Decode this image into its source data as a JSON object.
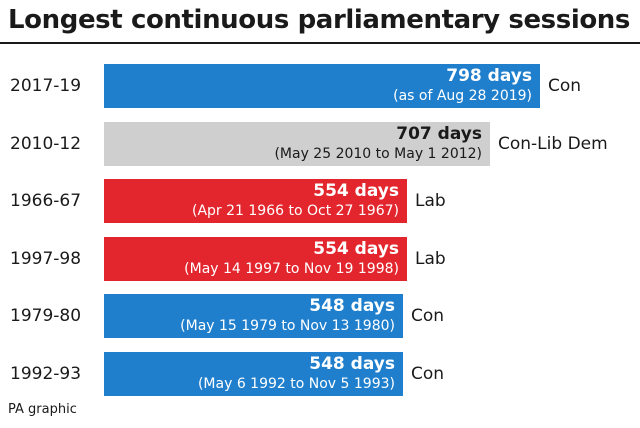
{
  "title": "Longest continuous parliamentary sessions",
  "source": "PA graphic",
  "colors": {
    "Con": "#1f7fcd",
    "Lab": "#e3262e",
    "Con-Lib Dem": "#cfcfcf",
    "text_on_dark": "#ffffff",
    "text_on_light": "#1a1a1a"
  },
  "chart_data": {
    "type": "bar",
    "orientation": "horizontal",
    "categories": [
      "2017-19",
      "2010-12",
      "1966-67",
      "1997-98",
      "1979-80",
      "1992-93"
    ],
    "values": [
      798,
      707,
      554,
      554,
      548,
      548
    ],
    "unit": "days",
    "value_labels": [
      "798 days",
      "707 days",
      "554 days",
      "554 days",
      "548 days",
      "548 days"
    ],
    "date_labels": [
      "(as of Aug 28 2019)",
      "(May 25 2010 to May 1 2012)",
      "(Apr 21 1966 to Oct 27 1967)",
      "(May 14 1997 to Nov 19 1998)",
      "(May 15 1979 to Nov 13 1980)",
      "(May 6 1992 to Nov 5 1993)"
    ],
    "parties": [
      "Con",
      "Con-Lib Dem",
      "Lab",
      "Lab",
      "Con",
      "Con"
    ],
    "xlim": [
      0,
      798
    ]
  }
}
